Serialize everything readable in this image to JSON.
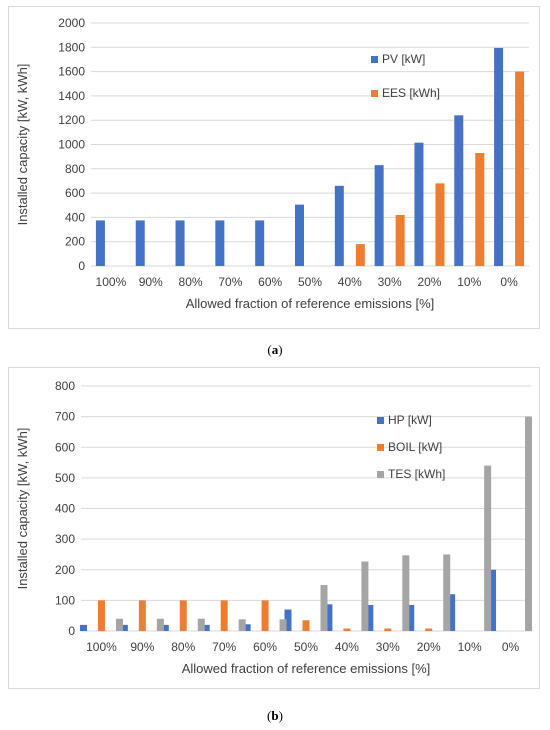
{
  "chart_data": [
    {
      "type": "bar",
      "title": "",
      "xlabel": "Allowed fraction of reference emissions [%]",
      "ylabel": "Installed capacity [kW, kWh]",
      "ylim": [
        0,
        2000
      ],
      "yticks": [
        0,
        200,
        400,
        600,
        800,
        1000,
        1200,
        1400,
        1600,
        1800,
        2000
      ],
      "categories": [
        "100%",
        "90%",
        "80%",
        "70%",
        "60%",
        "50%",
        "40%",
        "30%",
        "20%",
        "10%",
        "0%"
      ],
      "grid": true,
      "legend_position": "top-right",
      "series": [
        {
          "name": "PV [kW]",
          "color": "#4472C4",
          "values": [
            375,
            375,
            375,
            375,
            375,
            505,
            660,
            830,
            1015,
            1240,
            1795
          ]
        },
        {
          "name": "EES [kWh]",
          "color": "#ED7D31",
          "values": [
            0,
            0,
            0,
            0,
            0,
            0,
            180,
            420,
            680,
            930,
            1600
          ]
        }
      ]
    },
    {
      "type": "bar",
      "title": "",
      "xlabel": "Allowed fraction of reference emissions [%]",
      "ylabel": "Installed capacity [kW, kWh]",
      "ylim": [
        0,
        800
      ],
      "yticks": [
        0,
        100,
        200,
        300,
        400,
        500,
        600,
        700,
        800
      ],
      "categories": [
        "100%",
        "90%",
        "80%",
        "70%",
        "60%",
        "50%",
        "40%",
        "30%",
        "20%",
        "10%",
        "0%"
      ],
      "grid": true,
      "legend_position": "top-right",
      "series": [
        {
          "name": "HP [kW]",
          "color": "#4472C4",
          "values": [
            20,
            20,
            20,
            20,
            22,
            70,
            87,
            85,
            85,
            120,
            200
          ]
        },
        {
          "name": "BOIL [kW]",
          "color": "#ED7D31",
          "values": [
            100,
            100,
            100,
            100,
            100,
            35,
            8,
            8,
            8,
            0,
            0
          ]
        },
        {
          "name": "TES [kWh]",
          "color": "#A5A5A5",
          "values": [
            40,
            40,
            40,
            38,
            38,
            150,
            227,
            247,
            250,
            540,
            700
          ]
        }
      ]
    }
  ],
  "captions": [
    {
      "label": "a"
    },
    {
      "label": "b"
    }
  ]
}
